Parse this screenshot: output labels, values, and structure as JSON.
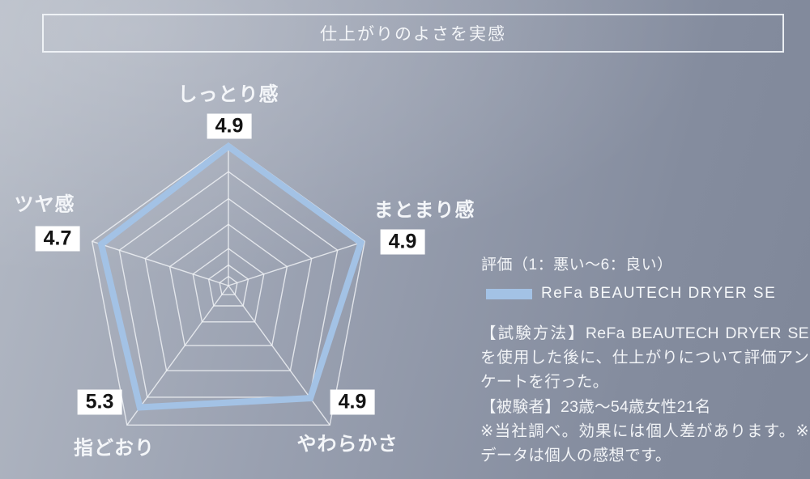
{
  "title": "仕上がりのよさを実感",
  "chart_data": {
    "type": "radar",
    "categories": [
      "しっとり感",
      "まとまり感",
      "やわらかさ",
      "指どおり",
      "ツヤ感"
    ],
    "series": [
      {
        "name": "ReFa BEAUTECH DRYER SE",
        "values": [
          4.9,
          4.9,
          4.9,
          5.3,
          4.7
        ]
      }
    ],
    "scale_min": 1,
    "scale_max": 6,
    "scale_note": "評価（1：悪い～6：良い）",
    "rings": 7,
    "grid_shape": "pentagon",
    "line_color": "#a3c2e5",
    "grid_color": "#eef1f5",
    "legend_position": "right"
  },
  "legend": {
    "swatch_color": "#a3c2e5",
    "label": "ReFa BEAUTECH DRYER SE"
  },
  "notes": {
    "method": "【試験方法】ReFa BEAUTECH DRYER SEを使用した後に、仕上がりについて評価アンケートを行った。",
    "subjects": "【被験者】23歳～54歳女性21名",
    "disclaimer": "※当社調べ。効果には個人差があります。※データは個人の感想です。"
  }
}
